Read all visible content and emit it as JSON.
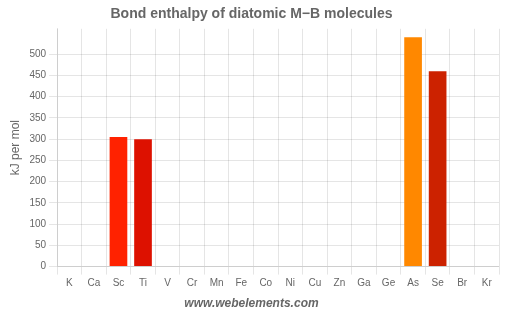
{
  "chart_data": {
    "type": "bar",
    "title": "Bond enthalpy of diatomic M−B molecules",
    "ylabel": "kJ per mol",
    "annotations": [
      "www.webelements.com"
    ],
    "categories": [
      "K",
      "Ca",
      "Sc",
      "Ti",
      "V",
      "Cr",
      "Mn",
      "Fe",
      "Co",
      "Ni",
      "Cu",
      "Zn",
      "Ga",
      "Ge",
      "As",
      "Se",
      "Br",
      "Kr"
    ],
    "values": [
      0,
      0,
      305,
      300,
      0,
      0,
      0,
      0,
      0,
      0,
      0,
      0,
      0,
      0,
      540,
      460,
      0,
      0
    ],
    "colors": [
      "#ff2200",
      "#ff2200",
      "#ff2200",
      "#dd1100",
      "#ff2200",
      "#ff2200",
      "#ff2200",
      "#ff2200",
      "#ff2200",
      "#ff2200",
      "#ff2200",
      "#ff2200",
      "#ff2200",
      "#ff2200",
      "#ff8800",
      "#cc2200",
      "#ff2200",
      "#ff2200"
    ],
    "ylim": [
      0,
      560
    ],
    "yticks": [
      0,
      50,
      100,
      150,
      200,
      250,
      300,
      350,
      400,
      450,
      500
    ],
    "grid": true
  }
}
